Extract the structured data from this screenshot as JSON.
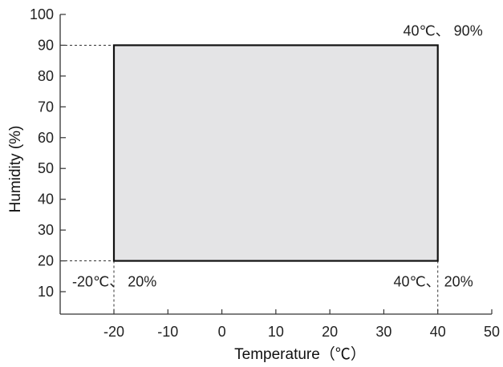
{
  "chart_data": {
    "type": "area",
    "title": "",
    "xlabel": "Temperature（℃）",
    "ylabel": "Humidity (%)",
    "xlim": [
      -30,
      50
    ],
    "ylim": [
      10,
      100
    ],
    "xticks": [
      -20,
      -10,
      0,
      10,
      20,
      30,
      40,
      50
    ],
    "xtick_labels": [
      "-20",
      "-10",
      "0",
      "10",
      "20",
      "30",
      "40",
      "50"
    ],
    "yticks": [
      10,
      20,
      30,
      40,
      50,
      60,
      70,
      80,
      90,
      100
    ],
    "ytick_labels": [
      "10",
      "20",
      "30",
      "40",
      "50",
      "60",
      "70",
      "80",
      "90",
      "100"
    ],
    "grid": false,
    "region": {
      "x": [
        -20,
        40
      ],
      "y": [
        20,
        90
      ],
      "fill_color": "#e4e4e6",
      "edge_color": "#111111"
    },
    "corners": [
      {
        "x": 40,
        "y": 90,
        "label": "40℃、 90%",
        "anchor": "top-right"
      },
      {
        "x": -20,
        "y": 20,
        "label": "-20℃、 20%",
        "anchor": "bottom-left"
      },
      {
        "x": 40,
        "y": 20,
        "label": "40℃、 20%",
        "anchor": "bottom-right"
      }
    ]
  }
}
